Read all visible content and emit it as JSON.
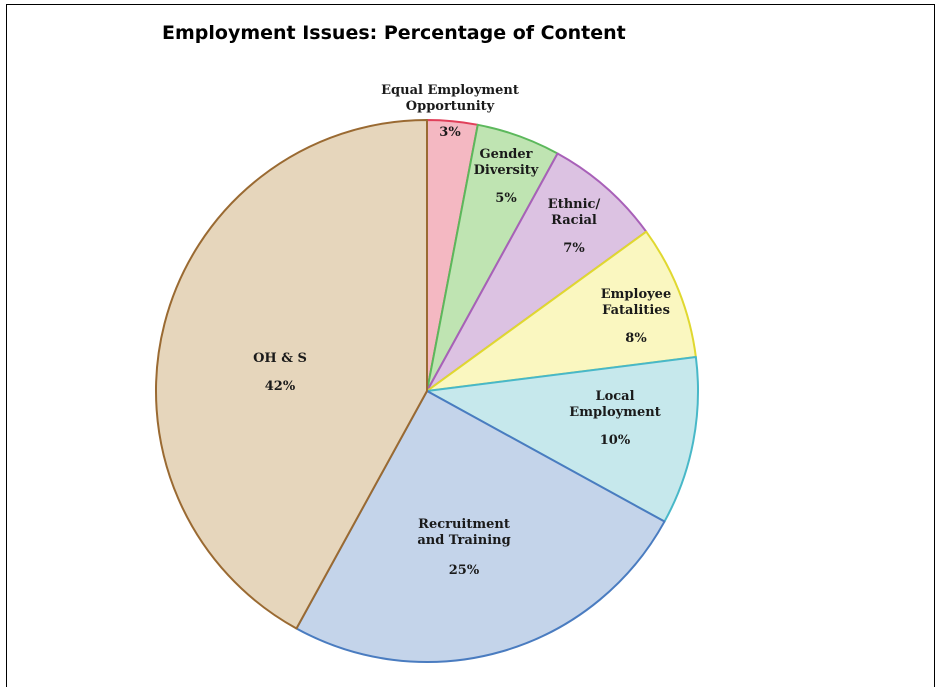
{
  "chart_data": {
    "type": "pie",
    "title": "Employment Issues: Percentage of Content",
    "slices": [
      {
        "label": [
          "Equal Employment",
          "Opportunity"
        ],
        "value": 3,
        "value_label": "3%",
        "fill": "#F4B8C2",
        "stroke": "#E0405A"
      },
      {
        "label": [
          "Gender",
          "Diversity"
        ],
        "value": 5,
        "value_label": "5%",
        "fill": "#BFE4B2",
        "stroke": "#5CB85C"
      },
      {
        "label": [
          "Ethnic/",
          "Racial"
        ],
        "value": 7,
        "value_label": "7%",
        "fill": "#DCC2E2",
        "stroke": "#A860B8"
      },
      {
        "label": [
          "Employee",
          "Fatalities"
        ],
        "value": 8,
        "value_label": "8%",
        "fill": "#FAF7C0",
        "stroke": "#E0D830"
      },
      {
        "label": [
          "Local",
          "Employment"
        ],
        "value": 10,
        "value_label": "10%",
        "fill": "#C6E8EC",
        "stroke": "#48B8C8"
      },
      {
        "label": [
          "Recruitment",
          "and Training"
        ],
        "value": 25,
        "value_label": "25%",
        "fill": "#C4D4EA",
        "stroke": "#4A7CC0"
      },
      {
        "label": [
          "OH & S"
        ],
        "value": 42,
        "value_label": "42%",
        "fill": "#E6D6BC",
        "stroke": "#9A6A32"
      }
    ]
  }
}
